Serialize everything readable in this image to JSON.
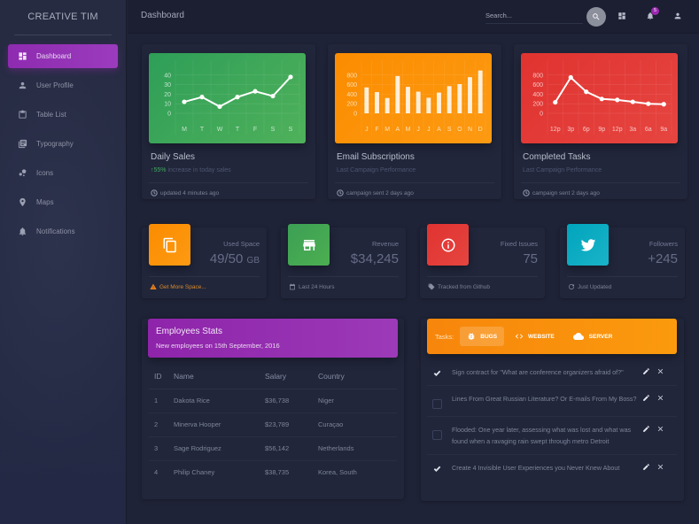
{
  "sidebar": {
    "brand": "CREATIVE TIM",
    "items": [
      {
        "label": "Dashboard",
        "icon": "dashboard-icon",
        "active": true
      },
      {
        "label": "User Profile",
        "icon": "person-icon"
      },
      {
        "label": "Table List",
        "icon": "clipboard-icon"
      },
      {
        "label": "Typography",
        "icon": "library-books-icon"
      },
      {
        "label": "Icons",
        "icon": "bubble-chart-icon"
      },
      {
        "label": "Maps",
        "icon": "location-pin-icon"
      },
      {
        "label": "Notifications",
        "icon": "bell-icon"
      }
    ]
  },
  "topbar": {
    "title": "Dashboard",
    "search_placeholder": "Search...",
    "notification_count": "5",
    "icons": [
      "search-icon",
      "dashboard-icon",
      "bell-icon",
      "person-icon"
    ]
  },
  "charts": [
    {
      "title": "Daily Sales",
      "sub_highlight": "55%",
      "sub_rest": " increase in today sales",
      "footer": "updated 4 minutes ago",
      "color": "#43a047"
    },
    {
      "title": "Email Subscriptions",
      "sub_rest": "Last Campaign Performance",
      "footer": "campaign sent 2 days ago",
      "color": "#fb8c00"
    },
    {
      "title": "Completed Tasks",
      "sub_rest": "Last Campaign Performance",
      "footer": "campaign sent 2 days ago",
      "color": "#e53935"
    }
  ],
  "chart_data": [
    {
      "type": "line",
      "title": "Daily Sales",
      "categories": [
        "M",
        "T",
        "W",
        "T",
        "F",
        "S",
        "S"
      ],
      "values": [
        12,
        17,
        7,
        17,
        23,
        18,
        38
      ],
      "yticks": [
        0,
        10,
        20,
        30,
        40
      ],
      "ylim": [
        0,
        50
      ],
      "grid": true
    },
    {
      "type": "bar",
      "title": "Email Subscriptions",
      "categories": [
        "J",
        "F",
        "M",
        "A",
        "M",
        "J",
        "J",
        "A",
        "S",
        "O",
        "N",
        "D"
      ],
      "values": [
        542,
        443,
        320,
        780,
        553,
        453,
        326,
        434,
        568,
        610,
        756,
        895
      ],
      "yticks": [
        0,
        200,
        400,
        600,
        800
      ],
      "ylim": [
        0,
        1000
      ],
      "grid": true
    },
    {
      "type": "line",
      "title": "Completed Tasks",
      "categories": [
        "12p",
        "3p",
        "6p",
        "9p",
        "12p",
        "3a",
        "6a",
        "9a"
      ],
      "values": [
        230,
        750,
        450,
        300,
        280,
        240,
        200,
        190
      ],
      "yticks": [
        0,
        200,
        400,
        600,
        800
      ],
      "ylim": [
        0,
        1000
      ],
      "grid": true
    }
  ],
  "stats": [
    {
      "label": "Used Space",
      "value": "49/50",
      "unit": "GB",
      "footer": "Get More Space...",
      "icon": "content-copy-icon",
      "footer_icon": "warning-icon",
      "color": "#fb8c00"
    },
    {
      "label": "Revenue",
      "value": "$34,245",
      "unit": "",
      "footer": "Last 24 Hours",
      "icon": "store-icon",
      "footer_icon": "calendar-icon",
      "color": "#43a047"
    },
    {
      "label": "Fixed Issues",
      "value": "75",
      "unit": "",
      "footer": "Tracked from Github",
      "icon": "info-outline-icon",
      "footer_icon": "tag-icon",
      "color": "#e53935"
    },
    {
      "label": "Followers",
      "value": "+245",
      "unit": "",
      "footer": "Just Updated",
      "icon": "twitter-icon",
      "footer_icon": "update-icon",
      "color": "#00acc1"
    }
  ],
  "employees": {
    "title": "Employees Stats",
    "subtitle": "New employees on 15th September, 2016",
    "columns": [
      "ID",
      "Name",
      "Salary",
      "Country"
    ],
    "rows": [
      [
        "1",
        "Dakota Rice",
        "$36,738",
        "Niger"
      ],
      [
        "2",
        "Minerva Hooper",
        "$23,789",
        "Curaçao"
      ],
      [
        "3",
        "Sage Rodriguez",
        "$56,142",
        "Netherlands"
      ],
      [
        "4",
        "Philip Chaney",
        "$38,735",
        "Korea, South"
      ]
    ]
  },
  "tasks": {
    "label": "Tasks:",
    "tabs": [
      {
        "label": "BUGS",
        "icon": "bug-icon",
        "active": true
      },
      {
        "label": "WEBSITE",
        "icon": "code-icon"
      },
      {
        "label": "SERVER",
        "icon": "cloud-icon"
      }
    ],
    "items": [
      {
        "text": "Sign contract for \"What are conference organizers afraid of?\"",
        "checked": true
      },
      {
        "text": "Lines From Great Russian Literature? Or E-mails From My Boss?",
        "checked": false
      },
      {
        "text": "Flooded: One year later, assessing what was lost and what was found when a ravaging rain swept through metro Detroit",
        "checked": false
      },
      {
        "text": "Create 4 Invisible User Experiences you Never Knew About",
        "checked": true
      }
    ]
  }
}
